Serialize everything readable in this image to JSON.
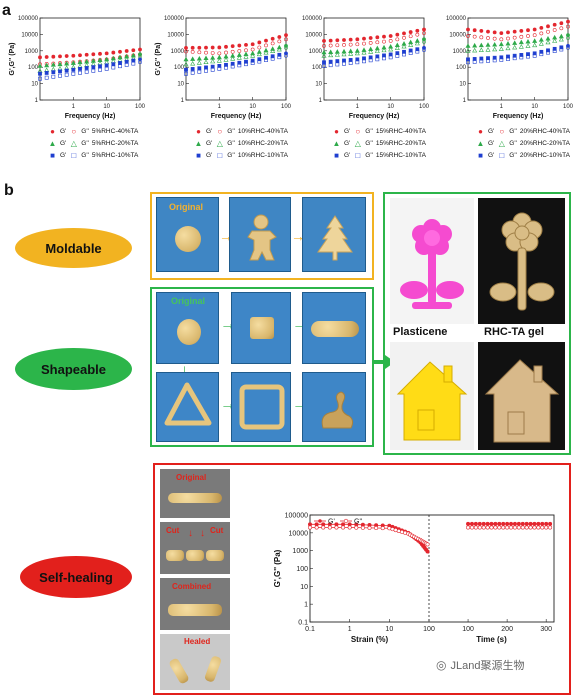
{
  "panel_a": {
    "label": "a",
    "charts": [
      {
        "ylabel": "G',G'' (Pa)",
        "xlabel": "Frequency (Hz)",
        "yticks": [
          "100000",
          "10000",
          "1000",
          "100",
          "10",
          "1"
        ],
        "xticks": [
          "1",
          "10",
          "100"
        ],
        "legend": [
          {
            "g1": "G'",
            "g2": "G''",
            "text": "5%RHC-40%TA"
          },
          {
            "g1": "G'",
            "g2": "G''",
            "text": "5%RHC-20%TA"
          },
          {
            "g1": "G'",
            "g2": "G''",
            "text": "5%RHC-10%TA"
          }
        ]
      },
      {
        "ylabel": "G',G'' (Pa)",
        "xlabel": "Frequency (Hz)",
        "yticks": [
          "100000",
          "10000",
          "1000",
          "100",
          "10",
          "1"
        ],
        "xticks": [
          "1",
          "10",
          "100"
        ],
        "legend": [
          {
            "g1": "G'",
            "g2": "G''",
            "text": "10%RHC-40%TA"
          },
          {
            "g1": "G'",
            "g2": "G''",
            "text": "10%RHC-20%TA"
          },
          {
            "g1": "G'",
            "g2": "G''",
            "text": "10%RHC-10%TA"
          }
        ]
      },
      {
        "ylabel": "",
        "xlabel": "Frequency (Hz)",
        "yticks": [
          "100000",
          "10000",
          "1000",
          "100",
          "10",
          "1"
        ],
        "xticks": [
          "1",
          "10",
          "100"
        ],
        "legend": [
          {
            "g1": "G'",
            "g2": "G''",
            "text": "15%RHC-40%TA"
          },
          {
            "g1": "G'",
            "g2": "G''",
            "text": "15%RHC-20%TA"
          },
          {
            "g1": "G'",
            "g2": "G''",
            "text": "15%RHC-10%TA"
          }
        ]
      },
      {
        "ylabel": "",
        "xlabel": "Frequency (Hz)",
        "yticks": [
          "100000",
          "10000",
          "1000",
          "100",
          "10",
          "1"
        ],
        "xticks": [
          "1",
          "10",
          "100"
        ],
        "legend": [
          {
            "g1": "G'",
            "g2": "G''",
            "text": "20%RHC-40%TA"
          },
          {
            "g1": "G'",
            "g2": "G''",
            "text": "20%RHC-20%TA"
          },
          {
            "g1": "G'",
            "g2": "G''",
            "text": "20%RHC-10%TA"
          }
        ]
      }
    ],
    "colors": {
      "TA40": "#e3262e",
      "TA20": "#2eaa4a",
      "TA10": "#1f3fd0"
    }
  },
  "panel_b": {
    "label": "b",
    "moldable": {
      "oval": "Moldable",
      "original": "Original",
      "color": "#f2b321"
    },
    "shapeable": {
      "oval": "Shapeable",
      "original": "Original",
      "color": "#2cb54a"
    },
    "selfhealing": {
      "oval": "Self-healing",
      "original": "Original",
      "cut1": "Cut",
      "cut2": "Cut",
      "combined": "Combined",
      "healed": "Healed",
      "color": "#e2201c"
    },
    "compare": {
      "left": "Plasticene",
      "right": "RHC-TA gel"
    },
    "healing_chart": {
      "ylabel": "G',G'' (Pa)",
      "xlabel_left": "Strain (%)",
      "xlabel_right": "Time (s)",
      "yticks": [
        "100000",
        "10000",
        "1000",
        "100",
        "10",
        "1",
        "0.1"
      ],
      "xticks_left": [
        "0.1",
        "1",
        "10",
        "100"
      ],
      "xticks_right": [
        "100",
        "200",
        "300"
      ],
      "legend": [
        "G'",
        "G''"
      ]
    }
  },
  "watermark": "JLand聚源生物",
  "chart_data": [
    {
      "type": "scatter",
      "title": "",
      "xlabel": "Frequency (Hz)",
      "ylabel": "G',G'' (Pa)",
      "xscale": "log",
      "yscale": "log",
      "xlim": [
        0.1,
        100
      ],
      "ylim": [
        1,
        100000
      ],
      "series": [
        {
          "name": "G' 5%RHC-40%TA",
          "x": [
            0.1,
            1,
            10,
            100
          ],
          "y": [
            400,
            500,
            700,
            1200
          ]
        },
        {
          "name": "G'' 5%RHC-40%TA",
          "x": [
            0.1,
            1,
            10,
            100
          ],
          "y": [
            150,
            200,
            300,
            600
          ]
        },
        {
          "name": "G' 5%RHC-20%TA",
          "x": [
            0.1,
            1,
            10,
            100
          ],
          "y": [
            120,
            180,
            300,
            600
          ]
        },
        {
          "name": "G'' 5%RHC-20%TA",
          "x": [
            0.1,
            1,
            10,
            100
          ],
          "y": [
            60,
            100,
            200,
            400
          ]
        },
        {
          "name": "G' 5%RHC-10%TA",
          "x": [
            0.1,
            1,
            10,
            100
          ],
          "y": [
            40,
            70,
            130,
            300
          ]
        },
        {
          "name": "G'' 5%RHC-10%TA",
          "x": [
            0.1,
            1,
            10,
            100
          ],
          "y": [
            20,
            40,
            80,
            200
          ]
        }
      ]
    },
    {
      "type": "scatter",
      "title": "",
      "xlabel": "Frequency (Hz)",
      "ylabel": "G',G'' (Pa)",
      "xscale": "log",
      "yscale": "log",
      "xlim": [
        0.1,
        100
      ],
      "ylim": [
        1,
        100000
      ],
      "series": [
        {
          "name": "G' 10%RHC-40%TA",
          "x": [
            0.1,
            1,
            10,
            100
          ],
          "y": [
            1500,
            1600,
            2500,
            9000
          ]
        },
        {
          "name": "G'' 10%RHC-40%TA",
          "x": [
            0.1,
            1,
            10,
            100
          ],
          "y": [
            900,
            700,
            1200,
            5000
          ]
        },
        {
          "name": "G' 10%RHC-20%TA",
          "x": [
            0.1,
            1,
            10,
            100
          ],
          "y": [
            300,
            400,
            700,
            2000
          ]
        },
        {
          "name": "G'' 10%RHC-20%TA",
          "x": [
            0.1,
            1,
            10,
            100
          ],
          "y": [
            150,
            250,
            500,
            1500
          ]
        },
        {
          "name": "G' 10%RHC-10%TA",
          "x": [
            0.1,
            1,
            10,
            100
          ],
          "y": [
            70,
            120,
            250,
            700
          ]
        },
        {
          "name": "G'' 10%RHC-10%TA",
          "x": [
            0.1,
            1,
            10,
            100
          ],
          "y": [
            40,
            80,
            180,
            500
          ]
        }
      ]
    },
    {
      "type": "scatter",
      "title": "",
      "xlabel": "Frequency (Hz)",
      "ylabel": "",
      "xscale": "log",
      "yscale": "log",
      "xlim": [
        0.1,
        100
      ],
      "ylim": [
        1,
        100000
      ],
      "series": [
        {
          "name": "G' 15%RHC-40%TA",
          "x": [
            0.1,
            1,
            10,
            100
          ],
          "y": [
            4000,
            5000,
            8000,
            20000
          ]
        },
        {
          "name": "G'' 15%RHC-40%TA",
          "x": [
            0.1,
            1,
            10,
            100
          ],
          "y": [
            2000,
            2500,
            4000,
            12000
          ]
        },
        {
          "name": "G' 15%RHC-20%TA",
          "x": [
            0.1,
            1,
            10,
            100
          ],
          "y": [
            800,
            1000,
            1800,
            5000
          ]
        },
        {
          "name": "G'' 15%RHC-20%TA",
          "x": [
            0.1,
            1,
            10,
            100
          ],
          "y": [
            500,
            700,
            1200,
            3500
          ]
        },
        {
          "name": "G' 15%RHC-10%TA",
          "x": [
            0.1,
            1,
            10,
            100
          ],
          "y": [
            200,
            300,
            600,
            1500
          ]
        },
        {
          "name": "G'' 15%RHC-10%TA",
          "x": [
            0.1,
            1,
            10,
            100
          ],
          "y": [
            120,
            200,
            400,
            1100
          ]
        }
      ]
    },
    {
      "type": "scatter",
      "title": "",
      "xlabel": "Frequency (Hz)",
      "ylabel": "",
      "xscale": "log",
      "yscale": "log",
      "xlim": [
        0.1,
        100
      ],
      "ylim": [
        1,
        100000
      ],
      "series": [
        {
          "name": "G' 20%RHC-40%TA",
          "x": [
            0.1,
            1,
            10,
            100
          ],
          "y": [
            20000,
            12000,
            20000,
            60000
          ]
        },
        {
          "name": "G'' 20%RHC-40%TA",
          "x": [
            0.1,
            1,
            10,
            100
          ],
          "y": [
            8000,
            5000,
            9000,
            30000
          ]
        },
        {
          "name": "G' 20%RHC-20%TA",
          "x": [
            0.1,
            1,
            10,
            100
          ],
          "y": [
            2000,
            2500,
            4000,
            9000
          ]
        },
        {
          "name": "G'' 20%RHC-20%TA",
          "x": [
            0.1,
            1,
            10,
            100
          ],
          "y": [
            1000,
            1300,
            2200,
            6000
          ]
        },
        {
          "name": "G' 20%RHC-10%TA",
          "x": [
            0.1,
            1,
            10,
            100
          ],
          "y": [
            300,
            400,
            700,
            2000
          ]
        },
        {
          "name": "G'' 20%RHC-10%TA",
          "x": [
            0.1,
            1,
            10,
            100
          ],
          "y": [
            200,
            280,
            500,
            1500
          ]
        }
      ]
    },
    {
      "type": "scatter",
      "title": "",
      "xlabel": "Strain (%) / Time (s)",
      "ylabel": "G',G'' (Pa)",
      "yscale": "log",
      "ylim": [
        0.1,
        100000
      ],
      "series": [
        {
          "name": "G'",
          "strain": [
            0.1,
            1,
            10,
            30,
            60,
            100
          ],
          "y_strain": [
            30000,
            30000,
            25000,
            10000,
            3000,
            700
          ],
          "time": [
            100,
            200,
            300
          ],
          "y_time": [
            32000,
            32000,
            32000
          ]
        },
        {
          "name": "G''",
          "strain": [
            0.1,
            1,
            10,
            30,
            60,
            100
          ],
          "y_strain": [
            20000,
            20000,
            18000,
            9000,
            4000,
            2000
          ],
          "time": [
            100,
            200,
            300
          ],
          "y_time": [
            20000,
            20000,
            20000
          ]
        }
      ]
    }
  ]
}
